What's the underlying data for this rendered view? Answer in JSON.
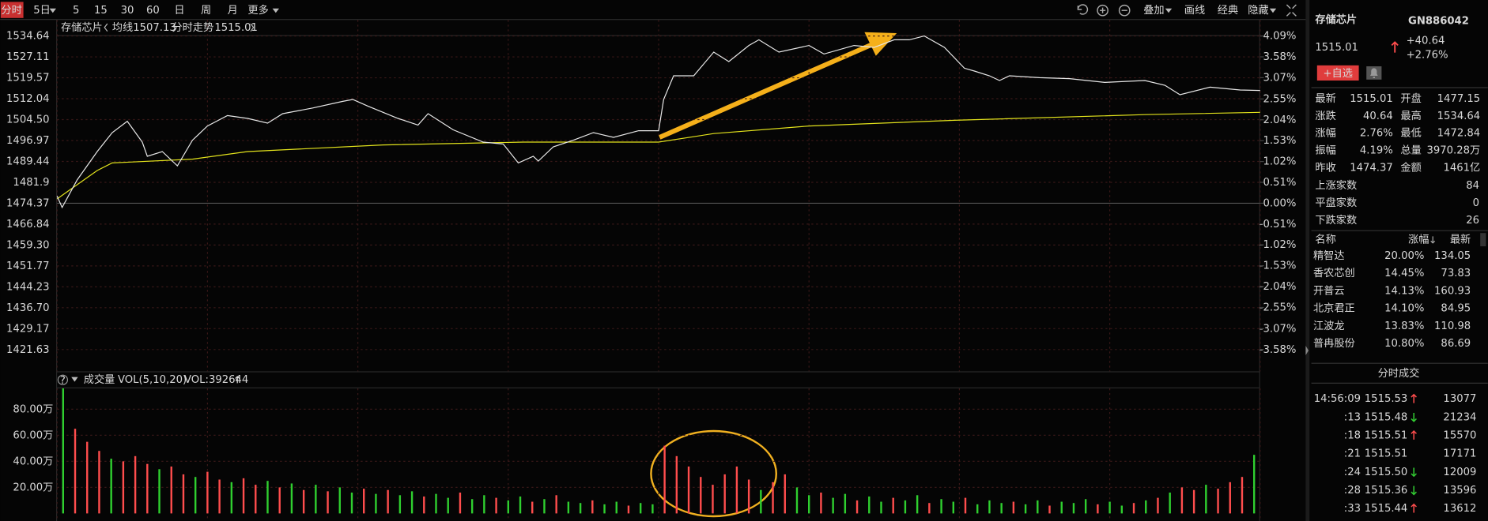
{
  "toolbar": {
    "tabs": [
      "分时",
      "5日",
      "5",
      "15",
      "30",
      "60",
      "日",
      "周",
      "月",
      "更多"
    ],
    "active_tab": 0,
    "tools": [
      "叠加",
      "画线",
      "经典",
      "隐藏"
    ]
  },
  "chart_data": [
    {
      "type": "line",
      "title": "存储芯片",
      "series": [
        {
          "name": "分时走势",
          "color": "#e8e8e8",
          "x": [
            0,
            1,
            4,
            8,
            11,
            14,
            17,
            18,
            21,
            24,
            27,
            30,
            34,
            38,
            42,
            45,
            51,
            57,
            59,
            62,
            68,
            72,
            74,
            79,
            85,
            89,
            92,
            95,
            96,
            99,
            103,
            107,
            111,
            116,
            120,
            121,
            123,
            127,
            131,
            134,
            138,
            140,
            144,
            150,
            153,
            159,
            163,
            167,
            170,
            173,
            177,
            181,
            183,
            186,
            188,
            190,
            196,
            202,
            209,
            217,
            221,
            224,
            230,
            236,
            240
          ],
          "values": [
            1476.93,
            1472.84,
            1482.73,
            1492.98,
            1499.81,
            1503.9,
            1496.39,
            1491.27,
            1492.98,
            1487.85,
            1497.07,
            1502.2,
            1505.95,
            1504.93,
            1503.22,
            1506.64,
            1508.69,
            1511.08,
            1511.76,
            1509.37,
            1504.93,
            1502.54,
            1506.64,
            1500.83,
            1496.39,
            1495.71,
            1488.88,
            1491.27,
            1489.56,
            1494.68,
            1497.07,
            1499.81,
            1498.1,
            1500.49,
            1500.49,
            1511.76,
            1520.3,
            1520.3,
            1528.83,
            1525.42,
            1531.22,
            1533.27,
            1528.83,
            1531.22,
            1528.15,
            1531.22,
            1530.54,
            1533.27,
            1533.27,
            1534.64,
            1530.54,
            1523.03,
            1522.0,
            1520.3,
            1518.59,
            1520.3,
            1519.61,
            1519.27,
            1517.91,
            1518.59,
            1516.88,
            1513.47,
            1516.2,
            1515.17,
            1515.01
          ]
        },
        {
          "name": "均线",
          "color": "#e3e31c",
          "x": [
            0,
            4,
            8,
            11,
            15,
            27,
            38,
            65,
            93,
            120,
            131,
            150,
            179,
            217,
            240
          ],
          "values": [
            1475.9,
            1481.02,
            1486.15,
            1488.88,
            1489.22,
            1490.24,
            1492.98,
            1495.37,
            1496.39,
            1496.39,
            1499.47,
            1502.2,
            1504.25,
            1506.3,
            1507.13
          ]
        }
      ],
      "xlim": [
        0,
        240
      ],
      "xticks": [
        0,
        30,
        60,
        90,
        120,
        150,
        180,
        210,
        240
      ],
      "ylim": [
        1421.63,
        1534.64
      ],
      "yticks": [
        1534.64,
        1527.11,
        1519.57,
        1512.04,
        {
          "value": 1504.5,
          "label": "1504.50"
        },
        1496.97,
        1489.44,
        1481.9,
        1474.37,
        1466.84,
        {
          "value": 1459.3,
          "label": "1459.30"
        },
        1451.77,
        1444.23,
        {
          "value": 1436.7,
          "label": "1436.70"
        },
        1429.17,
        1421.63
      ],
      "y2lim": [
        -3.58,
        4.09
      ],
      "y2ticks": [
        {
          "value": 4.09,
          "label": "4.09%"
        },
        {
          "value": 3.58,
          "label": "3.58%"
        },
        {
          "value": 3.07,
          "label": "3.07%"
        },
        {
          "value": 2.55,
          "label": "2.55%"
        },
        {
          "value": 2.04,
          "label": "2.04%"
        },
        {
          "value": 1.53,
          "label": "1.53%"
        },
        {
          "value": 1.02,
          "label": "1.02%"
        },
        {
          "value": 0.51,
          "label": "0.51%"
        },
        {
          "value": 0,
          "label": "0.00%"
        },
        {
          "value": -0.51,
          "label": "-0.51%"
        },
        {
          "value": -1.02,
          "label": "-1.02%"
        },
        {
          "value": -1.53,
          "label": "-1.53%"
        },
        {
          "value": -2.04,
          "label": "-2.04%"
        },
        {
          "value": -2.55,
          "label": "-2.55%"
        },
        {
          "value": -3.07,
          "label": "-3.07%"
        },
        {
          "value": -3.58,
          "label": "-3.58%"
        }
      ],
      "grid": true
    },
    {
      "type": "bar",
      "title": "成交量",
      "indicator": "VOL(5,10,20)",
      "readout": "VOL:392644",
      "values": [
        96,
        65,
        55,
        48,
        42,
        40,
        44,
        38,
        34,
        36,
        30,
        28,
        32,
        26,
        24,
        27,
        22,
        25,
        20,
        23,
        18,
        22,
        17,
        20,
        16,
        19,
        15,
        18,
        14,
        17,
        13,
        15,
        12,
        16,
        11,
        14,
        12,
        10,
        13,
        9,
        11,
        14,
        9,
        8,
        10,
        7,
        9,
        6,
        8,
        7,
        52,
        44,
        36,
        28,
        22,
        30,
        36,
        26,
        18,
        24,
        30,
        20,
        14,
        16,
        12,
        15,
        10,
        13,
        9,
        12,
        10,
        14,
        8,
        11,
        9,
        12,
        7,
        10,
        8,
        9,
        7,
        10,
        6,
        9,
        8,
        11,
        7,
        9,
        6,
        8,
        10,
        12,
        16,
        20,
        18,
        22,
        19,
        24,
        28,
        45
      ],
      "rising": [
        false,
        true,
        true,
        true,
        false,
        true,
        true,
        true,
        false,
        true,
        true,
        false,
        true,
        true,
        false,
        true,
        true,
        false,
        true,
        false,
        true,
        false,
        true,
        false,
        false,
        true,
        false,
        true,
        false,
        false,
        true,
        false,
        false,
        true,
        false,
        false,
        true,
        false,
        false,
        true,
        false,
        true,
        false,
        false,
        true,
        false,
        false,
        true,
        false,
        false,
        true,
        true,
        true,
        true,
        true,
        true,
        true,
        true,
        false,
        true,
        true,
        false,
        false,
        true,
        false,
        false,
        true,
        false,
        false,
        true,
        false,
        false,
        true,
        false,
        false,
        true,
        false,
        false,
        false,
        true,
        false,
        false,
        true,
        false,
        false,
        false,
        true,
        false,
        false,
        true,
        false,
        true,
        false,
        true,
        true,
        false,
        true,
        true,
        true,
        false
      ],
      "up_color": "#ff4d4d",
      "down_color": "#2fcf2f",
      "ylim": [
        0,
        96
      ],
      "yticks": [
        {
          "value": 80,
          "label": "80.00万"
        },
        {
          "value": 60,
          "label": "60.00万"
        },
        {
          "value": 40,
          "label": "40.00万"
        },
        {
          "value": 20,
          "label": "20.00万"
        }
      ],
      "grid": true
    }
  ],
  "quote": {
    "name": "存储芯片",
    "code": "GN886042",
    "price": 1515.01,
    "change": "+40.64",
    "change_pct": "+2.76%",
    "button": "+自选",
    "fields": [
      {
        "label": "最新",
        "value": 1515.01,
        "tone": "up"
      },
      {
        "label": "开盘",
        "value": 1477.15,
        "tone": "up"
      },
      {
        "label": "涨跌",
        "value": 40.64,
        "tone": "up"
      },
      {
        "label": "最高",
        "value": 1534.64,
        "tone": "up"
      },
      {
        "label": "涨幅",
        "value": "2.76%",
        "tone": "up"
      },
      {
        "label": "最低",
        "value": 1472.84,
        "tone": "down"
      },
      {
        "label": "振幅",
        "value": "4.19%",
        "tone": "up"
      },
      {
        "label": "总量",
        "value": "3970.28万",
        "tone": "flat"
      },
      {
        "label": "昨收",
        "value": 1474.37,
        "tone": "flat"
      },
      {
        "label": "金额",
        "value": "1461亿",
        "tone": "amount"
      }
    ],
    "breadth": [
      {
        "label": "上涨家数",
        "value": 84,
        "tone": "up"
      },
      {
        "label": "平盘家数",
        "value": 0,
        "tone": "flat"
      },
      {
        "label": "下跌家数",
        "value": 26,
        "tone": "down"
      }
    ]
  },
  "constituents": {
    "headers": [
      "名称",
      "涨幅",
      "最新"
    ],
    "rows": [
      [
        "精智达",
        "20.00%",
        134.05
      ],
      [
        "香农芯创",
        "14.45%",
        73.83
      ],
      [
        "开普云",
        "14.13%",
        160.93
      ],
      [
        "北京君正",
        "14.10%",
        84.95
      ],
      [
        "江波龙",
        "13.83%",
        110.98
      ],
      [
        "普冉股份",
        "10.80%",
        86.69
      ]
    ]
  },
  "trades": {
    "title": "分时成交",
    "rows": [
      {
        "time": "14:56:09",
        "price": 1515.53,
        "dir": "up",
        "volume": 13077
      },
      {
        "time": ":13",
        "price": 1515.48,
        "dir": "down",
        "volume": 21234
      },
      {
        "time": ":18",
        "price": 1515.51,
        "dir": "up",
        "volume": 15570
      },
      {
        "time": ":21",
        "price": 1515.51,
        "dir": "flat",
        "volume": 17171
      },
      {
        "time": ":24",
        "price": "1515.50",
        "dir": "down",
        "volume": 12009
      },
      {
        "time": ":28",
        "price": 1515.36,
        "dir": "down",
        "volume": 13596
      },
      {
        "time": ":33",
        "price": 1515.44,
        "dir": "up",
        "volume": 13612
      }
    ]
  }
}
